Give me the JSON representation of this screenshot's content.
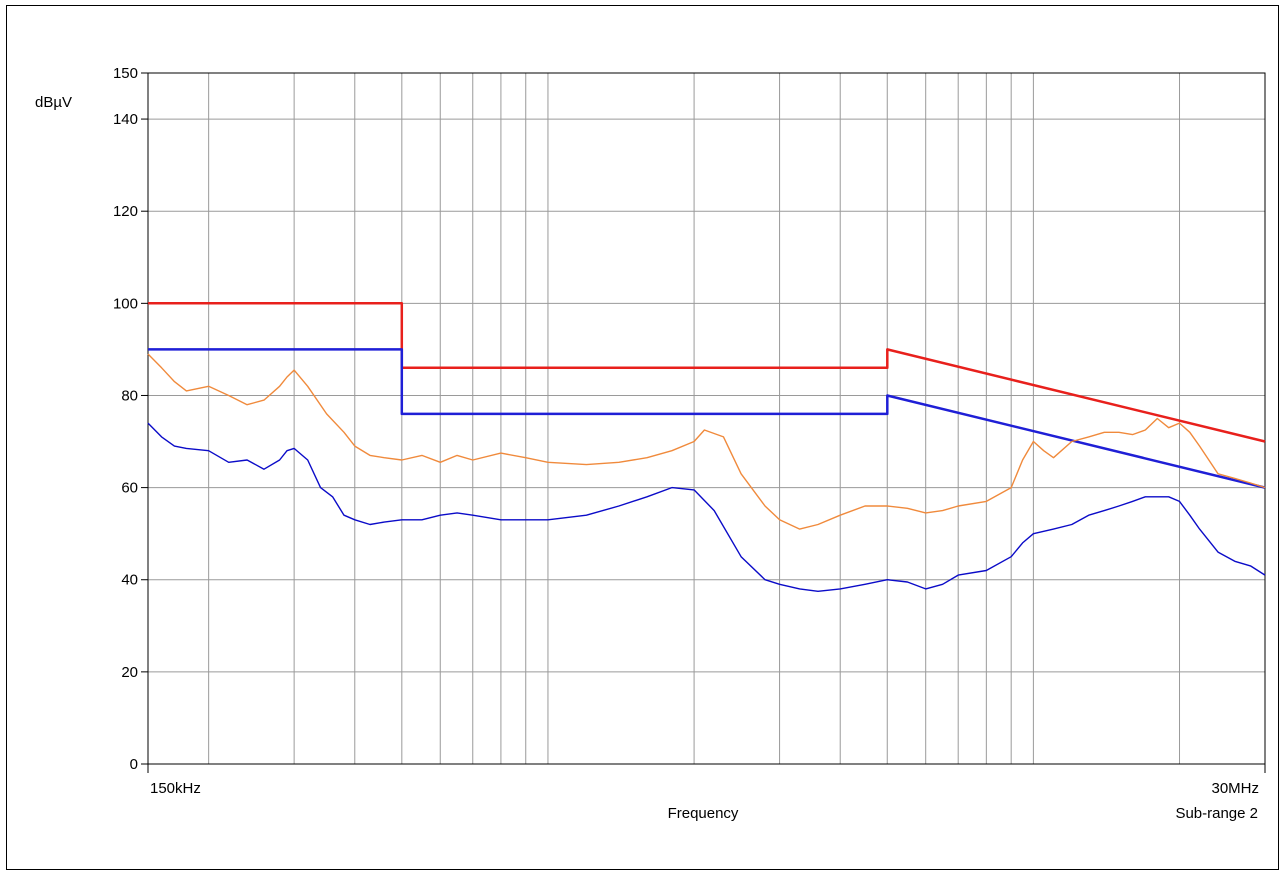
{
  "chart_data": {
    "type": "line",
    "ylabel": "dBµV",
    "xlabel": "Frequency",
    "sub_range_label": "Sub-range 2",
    "x_scale": "log",
    "xlim": [
      0.15,
      30
    ],
    "ylim": [
      0,
      150
    ],
    "x_ticks": [
      {
        "value": 0.15,
        "label": "150kHz"
      },
      {
        "value": 30,
        "label": "30MHz"
      }
    ],
    "y_ticks": [
      {
        "value": 0,
        "label": "0"
      },
      {
        "value": 20,
        "label": "20"
      },
      {
        "value": 40,
        "label": "40"
      },
      {
        "value": 60,
        "label": "60"
      },
      {
        "value": 80,
        "label": "80"
      },
      {
        "value": 100,
        "label": "100"
      },
      {
        "value": 120,
        "label": "120"
      },
      {
        "value": 140,
        "label": "140"
      },
      {
        "value": 150,
        "label": "150"
      }
    ],
    "grid": true,
    "series": [
      {
        "color": "#e8201c",
        "x": [
          0.15,
          0.5,
          0.5,
          5,
          5,
          30
        ],
        "y": [
          100,
          100,
          86,
          86,
          90,
          70
        ]
      },
      {
        "color": "#1f1fd6",
        "x": [
          0.15,
          0.5,
          0.5,
          5,
          5,
          30
        ],
        "y": [
          90,
          90,
          76,
          76,
          80,
          60
        ]
      },
      {
        "color": "#f08a3c",
        "x": [
          0.15,
          0.16,
          0.17,
          0.18,
          0.2,
          0.22,
          0.24,
          0.26,
          0.28,
          0.29,
          0.3,
          0.32,
          0.35,
          0.38,
          0.4,
          0.43,
          0.46,
          0.5,
          0.55,
          0.6,
          0.65,
          0.7,
          0.8,
          0.9,
          1.0,
          1.2,
          1.4,
          1.6,
          1.8,
          2.0,
          2.1,
          2.3,
          2.5,
          2.8,
          3.0,
          3.3,
          3.6,
          4.0,
          4.5,
          5.0,
          5.5,
          6.0,
          6.5,
          7.0,
          8.0,
          9.0,
          9.5,
          10,
          10.5,
          11,
          12,
          13,
          14,
          15,
          16,
          17,
          18,
          19,
          20,
          21,
          22,
          24,
          26,
          28,
          30
        ],
        "y": [
          89,
          86,
          83,
          81,
          82,
          80,
          78,
          79,
          82,
          84,
          85.5,
          82,
          76,
          72,
          69,
          67,
          66.5,
          66,
          67,
          65.5,
          67,
          66,
          67.5,
          66.5,
          65.5,
          65,
          65.5,
          66.5,
          68,
          70,
          72.5,
          71,
          63,
          56,
          53,
          51,
          52,
          54,
          56,
          56,
          55.5,
          54.5,
          55,
          56,
          57,
          60,
          66,
          70,
          68,
          66.5,
          70,
          71,
          72,
          72,
          71.5,
          72.5,
          75,
          73,
          74,
          72,
          69,
          63,
          62,
          61,
          60
        ]
      },
      {
        "color": "#0b0bc8",
        "x": [
          0.15,
          0.16,
          0.17,
          0.18,
          0.2,
          0.22,
          0.24,
          0.26,
          0.28,
          0.29,
          0.3,
          0.32,
          0.34,
          0.36,
          0.38,
          0.4,
          0.43,
          0.46,
          0.5,
          0.55,
          0.6,
          0.65,
          0.7,
          0.8,
          0.9,
          1.0,
          1.2,
          1.4,
          1.6,
          1.8,
          2.0,
          2.2,
          2.5,
          2.8,
          3.0,
          3.3,
          3.6,
          4.0,
          4.5,
          5.0,
          5.5,
          6.0,
          6.5,
          7.0,
          8.0,
          9.0,
          9.5,
          10,
          11,
          12,
          13,
          14,
          15,
          16,
          17,
          18,
          19,
          20,
          21,
          22,
          24,
          26,
          28,
          30
        ],
        "y": [
          74,
          71,
          69,
          68.5,
          68,
          65.5,
          66,
          64,
          66,
          68,
          68.5,
          66,
          60,
          58,
          54,
          53,
          52,
          52.5,
          53,
          53,
          54,
          54.5,
          54,
          53,
          53,
          53,
          54,
          56,
          58,
          60,
          59.5,
          55,
          45,
          40,
          39,
          38,
          37.5,
          38,
          39,
          40,
          39.5,
          38,
          39,
          41,
          42,
          45,
          48,
          50,
          51,
          52,
          54,
          55,
          56,
          57,
          58,
          58,
          58,
          57,
          54,
          51,
          46,
          44,
          43,
          41
        ]
      }
    ]
  }
}
